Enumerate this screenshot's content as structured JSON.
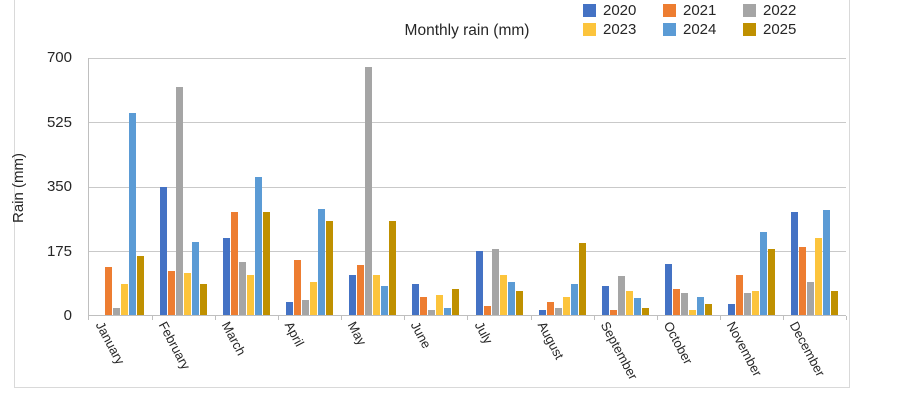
{
  "chart_data": {
    "type": "bar",
    "title": "Monthly rain (mm)",
    "xlabel": "",
    "ylabel": "Rain (mm)",
    "ylim": [
      0,
      700
    ],
    "ytick_interval": 175,
    "yticks_labels": [
      "700",
      "525",
      "350",
      "175",
      "0"
    ],
    "grid": true,
    "legend_position": "top-right",
    "categories": [
      "January",
      "February",
      "March",
      "April",
      "May",
      "June",
      "July",
      "August",
      "September",
      "October",
      "November",
      "December"
    ],
    "series": [
      {
        "name": "2020",
        "color": "#4472C4",
        "values": [
          0,
          350,
          210,
          35,
          110,
          85,
          175,
          15,
          80,
          140,
          30,
          280
        ]
      },
      {
        "name": "2021",
        "color": "#ED7D31",
        "values": [
          130,
          120,
          280,
          150,
          135,
          50,
          25,
          35,
          15,
          70,
          110,
          185
        ]
      },
      {
        "name": "2022",
        "color": "#A5A5A5",
        "values": [
          20,
          620,
          145,
          40,
          675,
          15,
          180,
          20,
          105,
          60,
          60,
          90
        ]
      },
      {
        "name": "2023",
        "color": "#FCC43C",
        "values": [
          85,
          115,
          110,
          90,
          110,
          55,
          110,
          50,
          65,
          15,
          65,
          210
        ]
      },
      {
        "name": "2024",
        "color": "#5B9BD5",
        "values": [
          550,
          200,
          375,
          290,
          80,
          20,
          90,
          85,
          45,
          50,
          225,
          285
        ]
      },
      {
        "name": "2025",
        "color": "#BF9000",
        "values": [
          160,
          85,
          280,
          255,
          255,
          70,
          65,
          195,
          20,
          30,
          180,
          65
        ]
      }
    ]
  }
}
